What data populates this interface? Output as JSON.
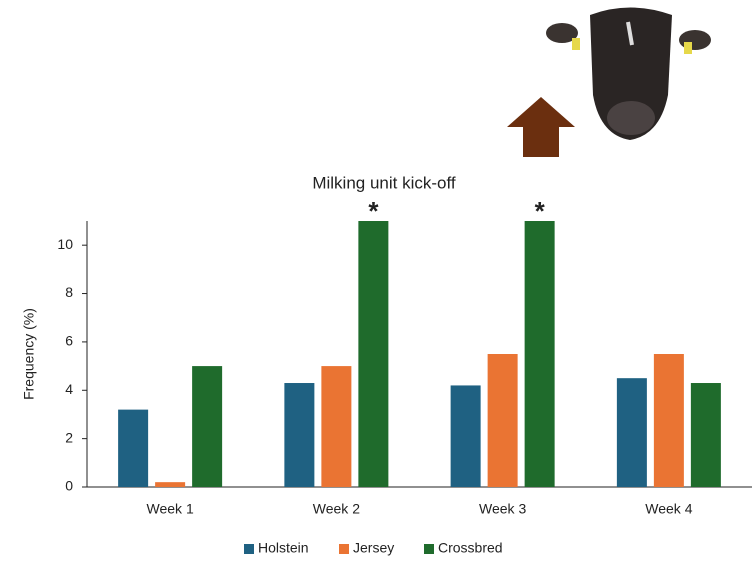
{
  "chart_data": {
    "type": "bar",
    "title": "Milking unit kick-off",
    "y_label": "Frequency (%)",
    "categories": [
      "Week 1",
      "Week 2",
      "Week 3",
      "Week 4"
    ],
    "series": [
      {
        "name": "Holstein",
        "color": "#1f6182",
        "values": [
          3.2,
          4.3,
          4.2,
          4.5
        ]
      },
      {
        "name": "Jersey",
        "color": "#ea7433",
        "values": [
          0.2,
          5.0,
          5.5,
          5.5
        ]
      },
      {
        "name": "Crossbred",
        "color": "#1f6b2c",
        "values": [
          5.0,
          11.0,
          11.0,
          4.3
        ]
      }
    ],
    "annotations": [
      {
        "text": "*",
        "category": "Week 2"
      },
      {
        "text": "*",
        "category": "Week 3"
      }
    ],
    "ylim": [
      0,
      11
    ],
    "yticks": [
      0,
      2,
      4,
      6,
      8,
      10
    ],
    "grid": false
  }
}
